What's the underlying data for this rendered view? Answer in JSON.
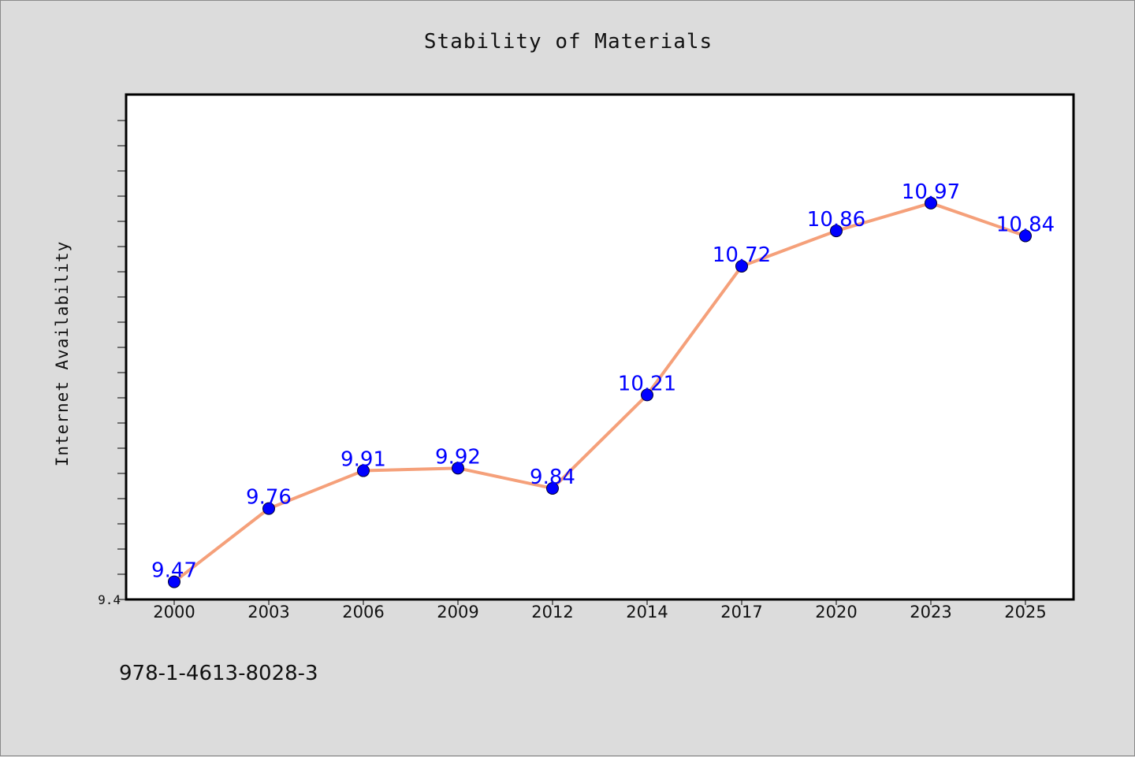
{
  "chart_data": {
    "type": "line",
    "title": "Stability of Materials",
    "xlabel": "",
    "ylabel": "Internet Availability",
    "categories": [
      "2000",
      "2003",
      "2006",
      "2009",
      "2012",
      "2014",
      "2017",
      "2020",
      "2023",
      "2025"
    ],
    "series": [
      {
        "values": [
          9.47,
          9.76,
          9.91,
          9.92,
          9.84,
          10.21,
          10.72,
          10.86,
          10.97,
          10.84
        ]
      }
    ],
    "data_labels": [
      "9.47",
      "9.76",
      "9.91",
      "9.92",
      "9.84",
      "10.21",
      "10.72",
      "10.86",
      "10.97",
      "10.84"
    ],
    "ylim": [
      9.4,
      11.4
    ],
    "y_min_label": "9.4",
    "grid": false,
    "colors": {
      "line": "#f5a07a",
      "marker": "#0000ff",
      "label": "#0000ff",
      "plot_bg": "#ffffff",
      "page_bg": "#dcdcdc"
    }
  },
  "footer": {
    "isbn": "978-1-4613-8028-3"
  }
}
